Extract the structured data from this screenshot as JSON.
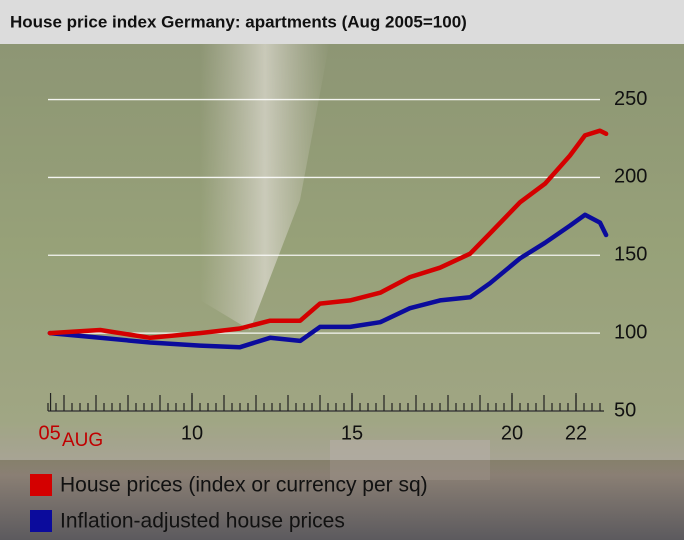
{
  "chart_data": {
    "type": "line",
    "title": "House price index Germany: apartments (Aug 2005=100)",
    "x": [
      2005.56,
      2007.13,
      2008.69,
      2010.25,
      2011.5,
      2012.44,
      2013.38,
      2014.0,
      2014.94,
      2015.88,
      2016.81,
      2017.75,
      2018.69,
      2019.31,
      2020.25,
      2021.03,
      2021.81,
      2022.28,
      2022.75,
      2022.94
    ],
    "series": [
      {
        "name": "House prices (index or currency per sq)",
        "color": "#d40000",
        "values": [
          100,
          102,
          97,
          100,
          103,
          108,
          108,
          119,
          121,
          126,
          136,
          142,
          151,
          164,
          184,
          196,
          214,
          227,
          230,
          228
        ]
      },
      {
        "name": "Inflation-adjusted house prices",
        "color": "#0b0b9c",
        "values": [
          100,
          97,
          94,
          92,
          91,
          97,
          95,
          104,
          104,
          107,
          116,
          121,
          123,
          132,
          148,
          158,
          169,
          176,
          171,
          163
        ]
      }
    ],
    "xlim": [
      2005.5,
      2023.0
    ],
    "xticks": [
      {
        "value": 2005.58,
        "label": "05"
      },
      {
        "value": 2010,
        "label": "10"
      },
      {
        "value": 2015,
        "label": "15"
      },
      {
        "value": 2020,
        "label": "20"
      },
      {
        "value": 2022,
        "label": "22"
      }
    ],
    "first_tick_note": "AUG",
    "ylim": [
      50,
      260
    ],
    "yticks": [
      50,
      100,
      150,
      200,
      250
    ],
    "grid": true,
    "legend": "bottom-left"
  }
}
